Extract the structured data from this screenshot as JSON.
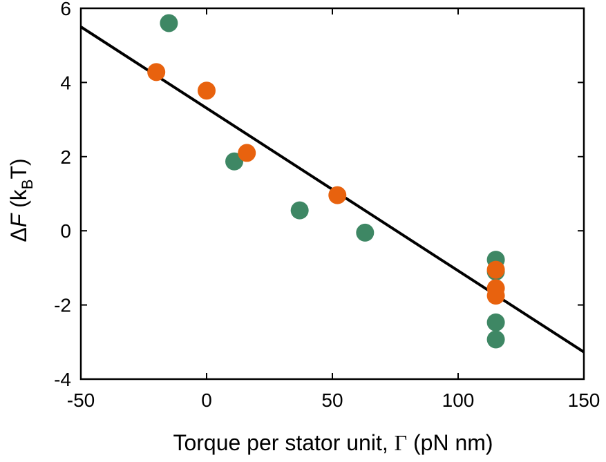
{
  "chart_data": {
    "type": "scatter",
    "title": "",
    "xlabel": {
      "prefix": "Torque per stator unit, ",
      "symbol": "Γ",
      "suffix": " (pN nm)"
    },
    "ylabel": {
      "delta": "Δ",
      "var": "F",
      "open": " (k",
      "sub": "B",
      "close": "T)"
    },
    "xlim": [
      -50,
      150
    ],
    "ylim": [
      -4,
      6
    ],
    "x_ticks": [
      -50,
      0,
      50,
      100,
      150
    ],
    "x_tick_labels": [
      "-50",
      "0",
      "50",
      "100",
      "150"
    ],
    "y_ticks": [
      -4,
      -2,
      0,
      2,
      4,
      6
    ],
    "y_tick_labels": [
      "-4",
      "-2",
      "0",
      "2",
      "4",
      "6"
    ],
    "grid": false,
    "legend": "none",
    "series": [
      {
        "color": "#3E8764",
        "marker": "circle",
        "points": [
          {
            "x": -15,
            "y": 5.6
          },
          {
            "x": 11,
            "y": 1.87
          },
          {
            "x": 37,
            "y": 0.55
          },
          {
            "x": 63,
            "y": -0.05
          },
          {
            "x": 115,
            "y": -0.78
          },
          {
            "x": 115,
            "y": -1.1
          },
          {
            "x": 115,
            "y": -2.47
          },
          {
            "x": 115,
            "y": -2.93
          }
        ]
      },
      {
        "color": "#E8620E",
        "marker": "circle",
        "points": [
          {
            "x": -20,
            "y": 4.28
          },
          {
            "x": 0,
            "y": 3.78
          },
          {
            "x": 16,
            "y": 2.1
          },
          {
            "x": 52,
            "y": 0.96
          },
          {
            "x": 115,
            "y": -1.05
          },
          {
            "x": 115,
            "y": -1.55
          },
          {
            "x": 115,
            "y": -1.75
          }
        ]
      }
    ],
    "fit_line": {
      "color": "#000000",
      "points": [
        {
          "x": -50,
          "y": 5.5
        },
        {
          "x": 150,
          "y": -3.27
        }
      ]
    }
  }
}
